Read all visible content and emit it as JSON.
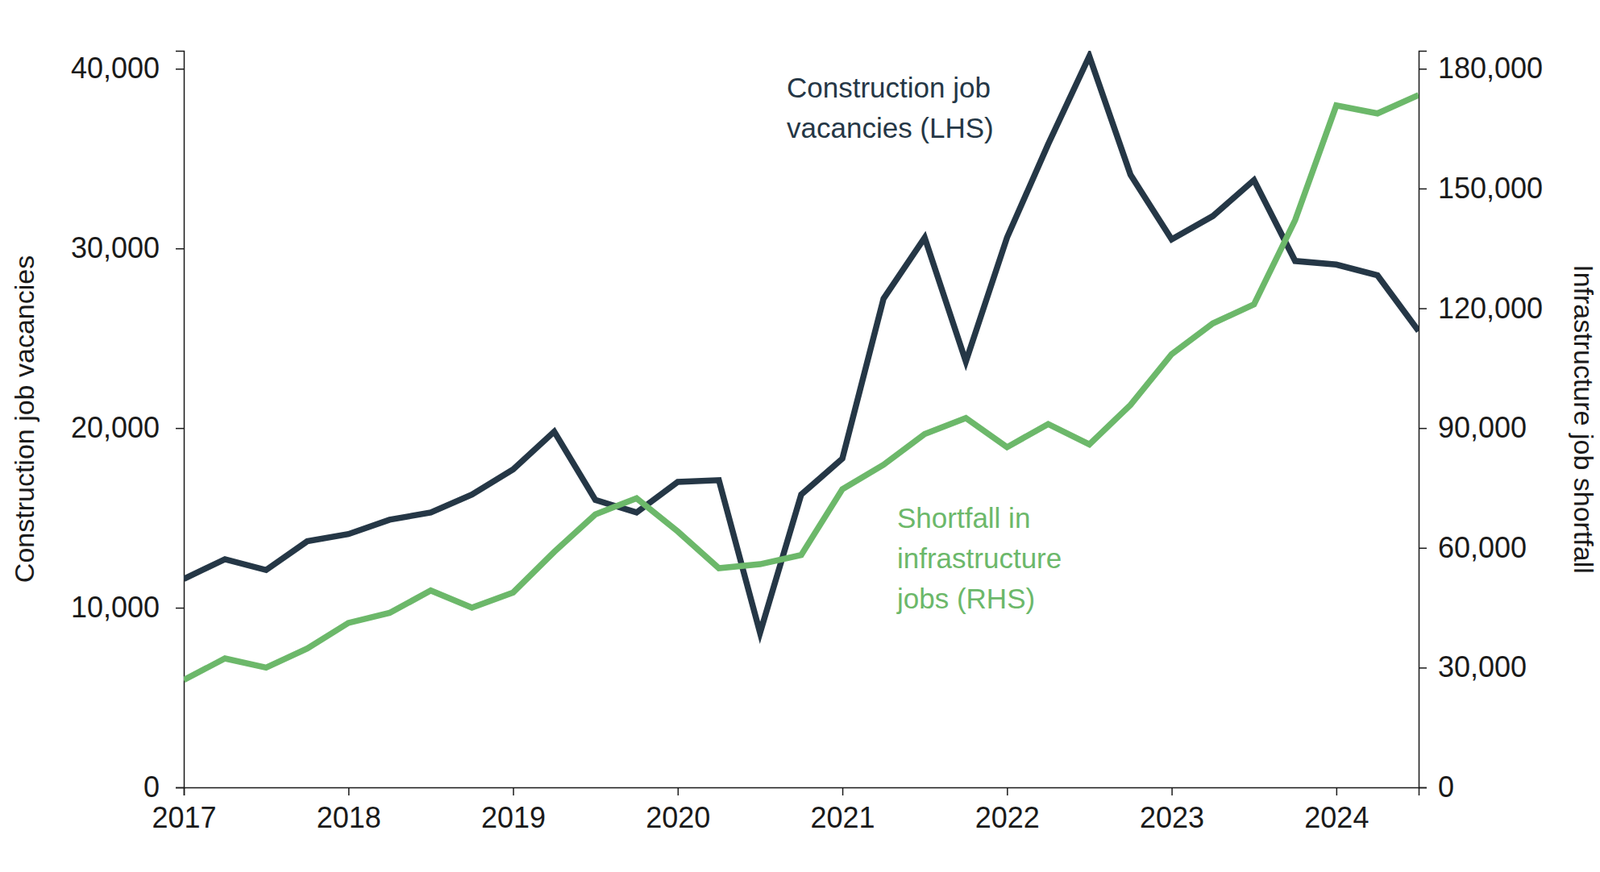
{
  "chart_data": {
    "type": "line",
    "y_label": "Construction job vacancies",
    "y2_label": "Infrastructure job shortfall",
    "x": [
      2017,
      2017.25,
      2017.5,
      2017.75,
      2018,
      2018.25,
      2018.5,
      2018.75,
      2019,
      2019.25,
      2019.5,
      2019.75,
      2020,
      2020.25,
      2020.5,
      2020.75,
      2021,
      2021.25,
      2021.5,
      2021.75,
      2022,
      2022.25,
      2022.5,
      2022.75,
      2023,
      2023.25,
      2023.5,
      2023.75,
      2024,
      2024.25,
      2024.5
    ],
    "xlim": [
      2017,
      2024.5
    ],
    "xticks": [
      2017,
      2018,
      2019,
      2020,
      2021,
      2022,
      2023,
      2024
    ],
    "ylim": [
      0,
      41000
    ],
    "yticks": [
      0,
      {
        "value": 10000,
        "label": "10,000"
      },
      {
        "value": 20000,
        "label": "20,000"
      },
      {
        "value": 30000,
        "label": "30,000"
      },
      {
        "value": 40000,
        "label": "40,000"
      }
    ],
    "y2lim": [
      0,
      184500
    ],
    "y2ticks": [
      0,
      {
        "value": 30000,
        "label": "30,000"
      },
      {
        "value": 60000,
        "label": "60,000"
      },
      {
        "value": 90000,
        "label": "90,000"
      },
      {
        "value": 120000,
        "label": "120,000"
      },
      {
        "value": 150000,
        "label": "150,000"
      },
      {
        "value": 180000,
        "label": "180,000"
      }
    ],
    "grid": false,
    "series": [
      {
        "name": "Construction job vacancies (LHS)",
        "color": "#253746",
        "axis": "y",
        "values": [
          11600,
          12700,
          12100,
          13700,
          14100,
          14900,
          15300,
          16300,
          17700,
          19800,
          16000,
          15300,
          17000,
          17100,
          8600,
          16300,
          18300,
          27200,
          30600,
          23700,
          30600,
          35800,
          40700,
          34100,
          30500,
          31800,
          33800,
          29300,
          29100,
          28500,
          25400
        ]
      },
      {
        "name": "Shortfall in infrastructure jobs (RHS)",
        "color": "#6cb86a",
        "axis": "y2",
        "values": [
          26900,
          32300,
          30000,
          34800,
          41200,
          43700,
          49300,
          45000,
          48800,
          59000,
          68400,
          72400,
          64100,
          54900,
          55900,
          58200,
          74700,
          80800,
          88500,
          92500,
          85200,
          91000,
          85900,
          95800,
          108500,
          116200,
          121000,
          142100,
          170800,
          168800,
          173400
        ]
      }
    ],
    "annotations": [
      {
        "lines": [
          "Construction job",
          "vacancies (LHS)"
        ],
        "color": "#253746"
      },
      {
        "lines": [
          "Shortfall in",
          "infrastructure",
          "jobs (RHS)"
        ],
        "color": "#6cb86a"
      }
    ]
  }
}
